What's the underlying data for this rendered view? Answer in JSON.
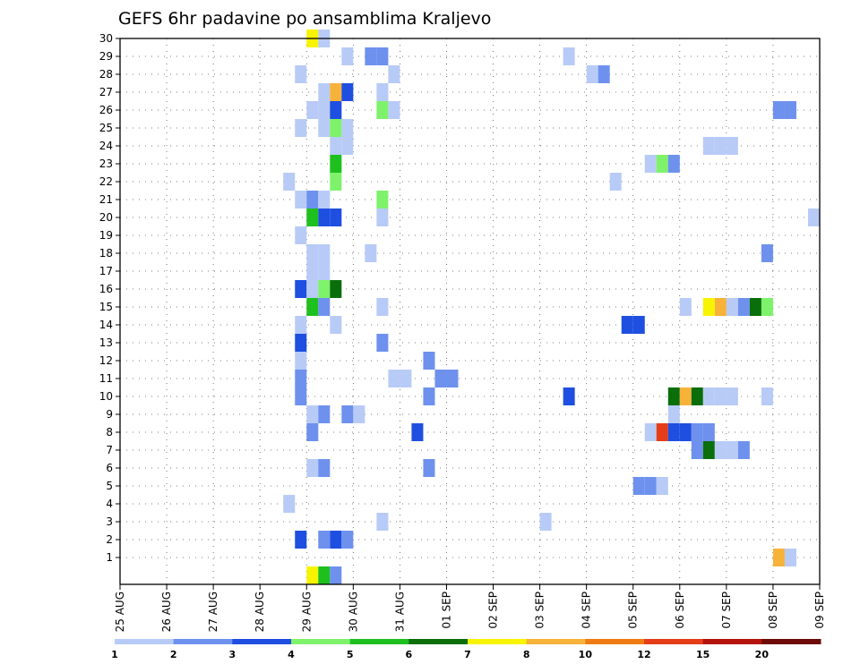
{
  "chart_data": {
    "type": "heatmap",
    "title": "GEFS 6hr padavine po ansamblima Kraljevo",
    "x_tick_labels": [
      "25 AUG",
      "26 AUG",
      "27 AUG",
      "28 AUG",
      "29 AUG",
      "30 AUG",
      "31 AUG",
      "01 SEP",
      "02 SEP",
      "03 SEP",
      "04 SEP",
      "05 SEP",
      "06 SEP",
      "07 SEP",
      "08 SEP",
      "09 SEP"
    ],
    "y_tick_labels": [
      "1",
      "2",
      "3",
      "4",
      "5",
      "6",
      "7",
      "8",
      "9",
      "10",
      "11",
      "12",
      "13",
      "14",
      "15",
      "16",
      "17",
      "18",
      "19",
      "20",
      "21",
      "22",
      "23",
      "24",
      "25",
      "26",
      "27",
      "28",
      "29",
      "30"
    ],
    "x_start": "25 AUG 00Z",
    "step_hours": 6,
    "ylim": [
      0,
      30
    ],
    "grid": true,
    "colorbar": {
      "levels": [
        "1",
        "2",
        "3",
        "4",
        "5",
        "6",
        "7",
        "8",
        "10",
        "12",
        "15",
        "20"
      ],
      "colors": [
        "#b8cbf7",
        "#6e91ee",
        "#1f4fe0",
        "#7ef26a",
        "#1ec01e",
        "#0a6e0a",
        "#f8f400",
        "#f7b23a",
        "#f07b12",
        "#e43d18",
        "#b4140d",
        "#6e0a0a"
      ]
    },
    "cells": [
      {
        "m": 30,
        "t": 16,
        "c": 7
      },
      {
        "m": 30,
        "t": 17,
        "c": 1
      },
      {
        "m": 29,
        "t": 19,
        "c": 1
      },
      {
        "m": 29,
        "t": 21,
        "c": 2
      },
      {
        "m": 29,
        "t": 22,
        "c": 2
      },
      {
        "m": 29,
        "t": 38,
        "c": 1
      },
      {
        "m": 28,
        "t": 15,
        "c": 1
      },
      {
        "m": 28,
        "t": 23,
        "c": 1
      },
      {
        "m": 28,
        "t": 40,
        "c": 1
      },
      {
        "m": 28,
        "t": 41,
        "c": 2
      },
      {
        "m": 27,
        "t": 17,
        "c": 1
      },
      {
        "m": 27,
        "t": 18,
        "c": 8
      },
      {
        "m": 27,
        "t": 19,
        "c": 3
      },
      {
        "m": 27,
        "t": 22,
        "c": 1
      },
      {
        "m": 26,
        "t": 16,
        "c": 1
      },
      {
        "m": 26,
        "t": 17,
        "c": 1
      },
      {
        "m": 26,
        "t": 18,
        "c": 3
      },
      {
        "m": 26,
        "t": 22,
        "c": 4
      },
      {
        "m": 26,
        "t": 23,
        "c": 1
      },
      {
        "m": 26,
        "t": 56,
        "c": 2
      },
      {
        "m": 26,
        "t": 57,
        "c": 2
      },
      {
        "m": 25,
        "t": 15,
        "c": 1
      },
      {
        "m": 25,
        "t": 17,
        "c": 1
      },
      {
        "m": 25,
        "t": 18,
        "c": 4
      },
      {
        "m": 25,
        "t": 19,
        "c": 1
      },
      {
        "m": 24,
        "t": 18,
        "c": 1
      },
      {
        "m": 24,
        "t": 19,
        "c": 1
      },
      {
        "m": 24,
        "t": 50,
        "c": 1
      },
      {
        "m": 24,
        "t": 51,
        "c": 1
      },
      {
        "m": 24,
        "t": 52,
        "c": 1
      },
      {
        "m": 23,
        "t": 18,
        "c": 5
      },
      {
        "m": 23,
        "t": 45,
        "c": 1
      },
      {
        "m": 23,
        "t": 46,
        "c": 4
      },
      {
        "m": 23,
        "t": 47,
        "c": 2
      },
      {
        "m": 22,
        "t": 14,
        "c": 1
      },
      {
        "m": 22,
        "t": 18,
        "c": 4
      },
      {
        "m": 22,
        "t": 42,
        "c": 1
      },
      {
        "m": 21,
        "t": 15,
        "c": 1
      },
      {
        "m": 21,
        "t": 16,
        "c": 2
      },
      {
        "m": 21,
        "t": 17,
        "c": 1
      },
      {
        "m": 21,
        "t": 22,
        "c": 4
      },
      {
        "m": 20,
        "t": 16,
        "c": 5
      },
      {
        "m": 20,
        "t": 17,
        "c": 3
      },
      {
        "m": 20,
        "t": 18,
        "c": 3
      },
      {
        "m": 20,
        "t": 22,
        "c": 1
      },
      {
        "m": 20,
        "t": 59,
        "c": 1
      },
      {
        "m": 19,
        "t": 15,
        "c": 1
      },
      {
        "m": 18,
        "t": 16,
        "c": 1
      },
      {
        "m": 18,
        "t": 17,
        "c": 1
      },
      {
        "m": 18,
        "t": 21,
        "c": 1
      },
      {
        "m": 18,
        "t": 55,
        "c": 2
      },
      {
        "m": 17,
        "t": 16,
        "c": 1
      },
      {
        "m": 17,
        "t": 17,
        "c": 1
      },
      {
        "m": 16,
        "t": 15,
        "c": 3
      },
      {
        "m": 16,
        "t": 16,
        "c": 1
      },
      {
        "m": 16,
        "t": 17,
        "c": 4
      },
      {
        "m": 16,
        "t": 18,
        "c": 6
      },
      {
        "m": 15,
        "t": 16,
        "c": 5
      },
      {
        "m": 15,
        "t": 17,
        "c": 2
      },
      {
        "m": 15,
        "t": 22,
        "c": 1
      },
      {
        "m": 15,
        "t": 48,
        "c": 1
      },
      {
        "m": 15,
        "t": 50,
        "c": 7
      },
      {
        "m": 15,
        "t": 51,
        "c": 8
      },
      {
        "m": 15,
        "t": 52,
        "c": 1
      },
      {
        "m": 15,
        "t": 53,
        "c": 2
      },
      {
        "m": 15,
        "t": 54,
        "c": 6
      },
      {
        "m": 15,
        "t": 55,
        "c": 4
      },
      {
        "m": 14,
        "t": 15,
        "c": 1
      },
      {
        "m": 14,
        "t": 18,
        "c": 1
      },
      {
        "m": 14,
        "t": 43,
        "c": 3
      },
      {
        "m": 14,
        "t": 44,
        "c": 3
      },
      {
        "m": 13,
        "t": 15,
        "c": 3
      },
      {
        "m": 13,
        "t": 22,
        "c": 2
      },
      {
        "m": 12,
        "t": 15,
        "c": 1
      },
      {
        "m": 12,
        "t": 26,
        "c": 2
      },
      {
        "m": 11,
        "t": 15,
        "c": 2
      },
      {
        "m": 11,
        "t": 23,
        "c": 1
      },
      {
        "m": 11,
        "t": 24,
        "c": 1
      },
      {
        "m": 11,
        "t": 27,
        "c": 2
      },
      {
        "m": 11,
        "t": 28,
        "c": 2
      },
      {
        "m": 10,
        "t": 15,
        "c": 2
      },
      {
        "m": 10,
        "t": 26,
        "c": 2
      },
      {
        "m": 10,
        "t": 38,
        "c": 3
      },
      {
        "m": 10,
        "t": 47,
        "c": 6
      },
      {
        "m": 10,
        "t": 48,
        "c": 8
      },
      {
        "m": 10,
        "t": 49,
        "c": 6
      },
      {
        "m": 10,
        "t": 50,
        "c": 1
      },
      {
        "m": 10,
        "t": 51,
        "c": 1
      },
      {
        "m": 10,
        "t": 52,
        "c": 1
      },
      {
        "m": 10,
        "t": 55,
        "c": 1
      },
      {
        "m": 9,
        "t": 16,
        "c": 1
      },
      {
        "m": 9,
        "t": 17,
        "c": 2
      },
      {
        "m": 9,
        "t": 19,
        "c": 2
      },
      {
        "m": 9,
        "t": 20,
        "c": 1
      },
      {
        "m": 9,
        "t": 47,
        "c": 1
      },
      {
        "m": 8,
        "t": 16,
        "c": 2
      },
      {
        "m": 8,
        "t": 25,
        "c": 3
      },
      {
        "m": 8,
        "t": 45,
        "c": 1
      },
      {
        "m": 8,
        "t": 46,
        "c": 10
      },
      {
        "m": 8,
        "t": 47,
        "c": 3
      },
      {
        "m": 8,
        "t": 48,
        "c": 3
      },
      {
        "m": 8,
        "t": 49,
        "c": 2
      },
      {
        "m": 8,
        "t": 50,
        "c": 2
      },
      {
        "m": 7,
        "t": 49,
        "c": 2
      },
      {
        "m": 7,
        "t": 50,
        "c": 6
      },
      {
        "m": 7,
        "t": 51,
        "c": 1
      },
      {
        "m": 7,
        "t": 52,
        "c": 1
      },
      {
        "m": 7,
        "t": 53,
        "c": 2
      },
      {
        "m": 6,
        "t": 16,
        "c": 1
      },
      {
        "m": 6,
        "t": 17,
        "c": 2
      },
      {
        "m": 6,
        "t": 26,
        "c": 2
      },
      {
        "m": 5,
        "t": 44,
        "c": 2
      },
      {
        "m": 5,
        "t": 45,
        "c": 2
      },
      {
        "m": 5,
        "t": 46,
        "c": 1
      },
      {
        "m": 4,
        "t": 14,
        "c": 1
      },
      {
        "m": 3,
        "t": 22,
        "c": 1
      },
      {
        "m": 3,
        "t": 36,
        "c": 1
      },
      {
        "m": 2,
        "t": 15,
        "c": 3
      },
      {
        "m": 2,
        "t": 17,
        "c": 2
      },
      {
        "m": 2,
        "t": 18,
        "c": 3
      },
      {
        "m": 2,
        "t": 19,
        "c": 2
      },
      {
        "m": 1,
        "t": 56,
        "c": 8
      },
      {
        "m": 1,
        "t": 57,
        "c": 1
      },
      {
        "m": 0,
        "t": 16,
        "c": 7
      },
      {
        "m": 0,
        "t": 17,
        "c": 5
      },
      {
        "m": 0,
        "t": 18,
        "c": 2
      }
    ]
  }
}
